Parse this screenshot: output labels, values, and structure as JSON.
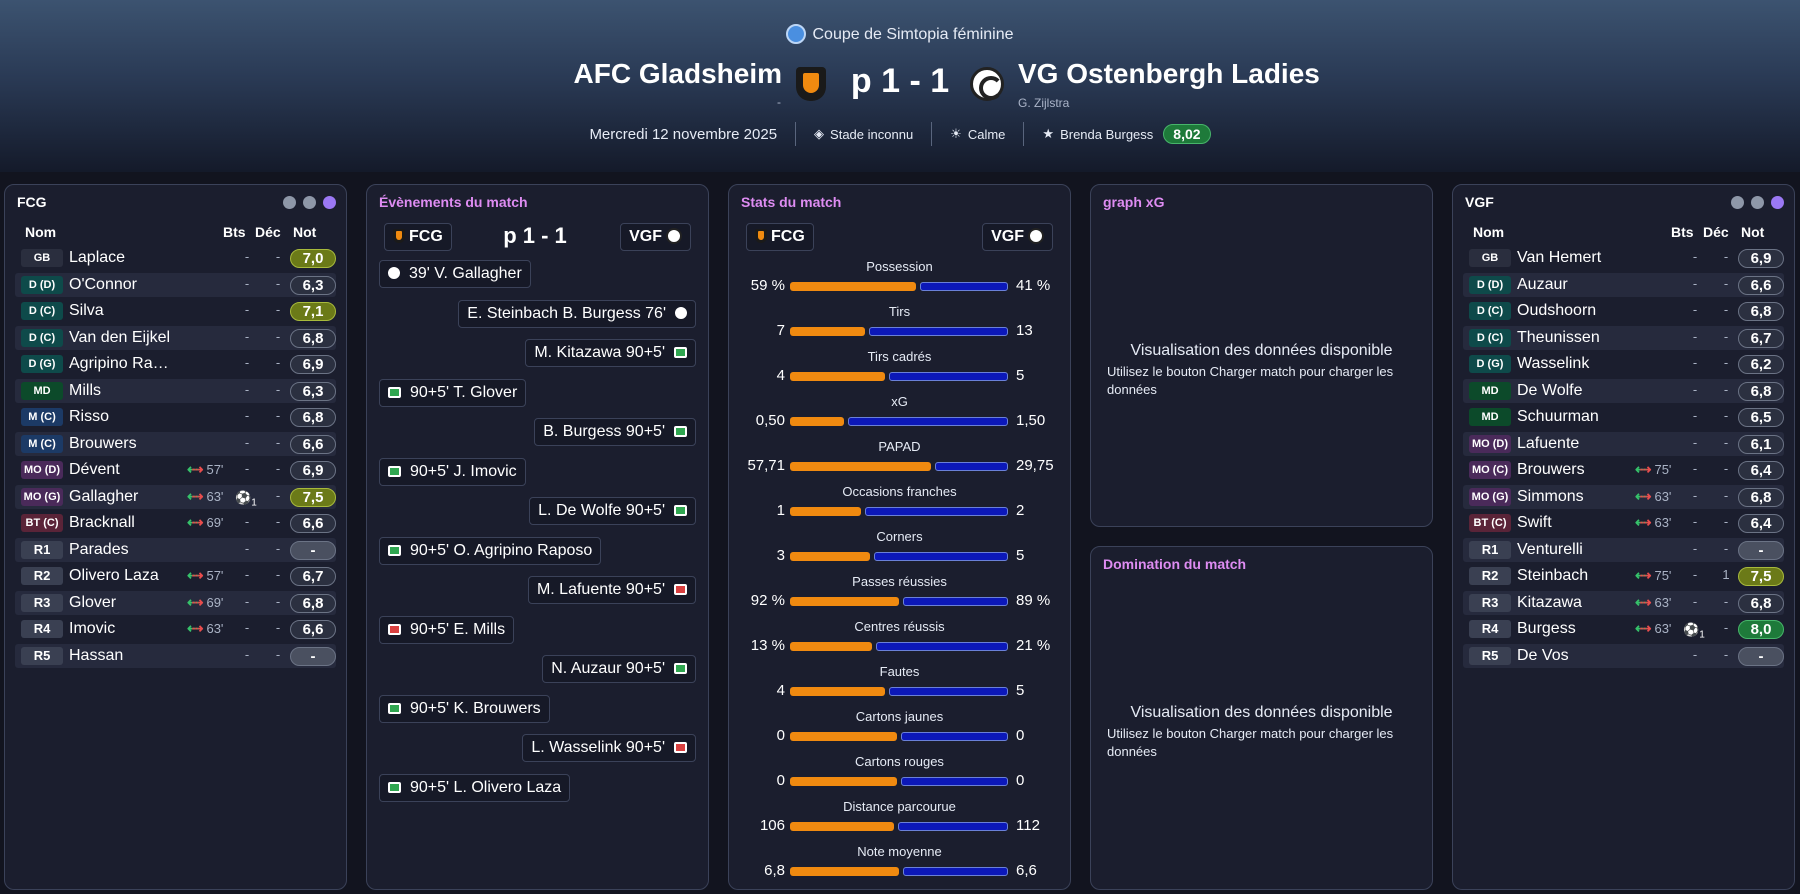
{
  "header": {
    "competition": "Coupe de Simtopia féminine",
    "home_team": "AFC Gladsheim",
    "away_team": "VG Ostenbergh Ladies",
    "home_manager": "-",
    "away_manager": "G. Zijlstra",
    "score": "p 1 - 1",
    "date": "Mercredi 12 novembre 2025",
    "stadium": "Stade inconnu",
    "weather": "Calme",
    "player_of_match": "Brenda Burgess",
    "player_of_match_rating": "8,02"
  },
  "colors": {
    "home_accent": "#f08a10",
    "away_accent": "#0c18b8",
    "panel_title": "#de8cf2",
    "rating_good": "#1e7a3a"
  },
  "home_lineup": {
    "title": "FCG",
    "columns": {
      "name": "Nom",
      "goals": "Bts",
      "assists": "Déc",
      "rating": "Not"
    },
    "players": [
      {
        "pos": "GB",
        "name": "Laplace",
        "goals": "-",
        "assists": "-",
        "rating": "7,0"
      },
      {
        "pos": "D (D)",
        "name": "O'Connor",
        "goals": "-",
        "assists": "-",
        "rating": "6,3"
      },
      {
        "pos": "D (C)",
        "name": "Silva",
        "goals": "-",
        "assists": "-",
        "rating": "7,1"
      },
      {
        "pos": "D (C)",
        "name": "Van den Eijkel",
        "goals": "-",
        "assists": "-",
        "rating": "6,8"
      },
      {
        "pos": "D (G)",
        "name": "Agripino Ra…",
        "goals": "-",
        "assists": "-",
        "rating": "6,9"
      },
      {
        "pos": "MD",
        "name": "Mills",
        "goals": "-",
        "assists": "-",
        "rating": "6,3"
      },
      {
        "pos": "M (C)",
        "name": "Risso",
        "goals": "-",
        "assists": "-",
        "rating": "6,8"
      },
      {
        "pos": "M (C)",
        "name": "Brouwers",
        "goals": "-",
        "assists": "-",
        "rating": "6,6"
      },
      {
        "pos": "MO (D)",
        "name": "Dévent",
        "sub": "57'",
        "goals": "-",
        "assists": "-",
        "rating": "6,9"
      },
      {
        "pos": "MO (G)",
        "name": "Gallagher",
        "sub": "63'",
        "goals": "1",
        "assists": "-",
        "rating": "7,5"
      },
      {
        "pos": "BT (C)",
        "name": "Bracknall",
        "sub": "69'",
        "goals": "-",
        "assists": "-",
        "rating": "6,6"
      },
      {
        "pos": "R1",
        "name": "Parades",
        "goals": "-",
        "assists": "-",
        "rating": "-"
      },
      {
        "pos": "R2",
        "name": "Olivero Laza",
        "sub": "57'",
        "goals": "-",
        "assists": "-",
        "rating": "6,7"
      },
      {
        "pos": "R3",
        "name": "Glover",
        "sub": "69'",
        "goals": "-",
        "assists": "-",
        "rating": "6,8"
      },
      {
        "pos": "R4",
        "name": "Imovic",
        "sub": "63'",
        "goals": "-",
        "assists": "-",
        "rating": "6,6"
      },
      {
        "pos": "R5",
        "name": "Hassan",
        "goals": "-",
        "assists": "-",
        "rating": "-"
      }
    ]
  },
  "away_lineup": {
    "title": "VGF",
    "columns": {
      "name": "Nom",
      "goals": "Bts",
      "assists": "Déc",
      "rating": "Not"
    },
    "players": [
      {
        "pos": "GB",
        "name": "Van Hemert",
        "goals": "-",
        "assists": "-",
        "rating": "6,9"
      },
      {
        "pos": "D (D)",
        "name": "Auzaur",
        "goals": "-",
        "assists": "-",
        "rating": "6,6"
      },
      {
        "pos": "D (C)",
        "name": "Oudshoorn",
        "goals": "-",
        "assists": "-",
        "rating": "6,8"
      },
      {
        "pos": "D (C)",
        "name": "Theunissen",
        "goals": "-",
        "assists": "-",
        "rating": "6,7"
      },
      {
        "pos": "D (G)",
        "name": "Wasselink",
        "goals": "-",
        "assists": "-",
        "rating": "6,2"
      },
      {
        "pos": "MD",
        "name": "De Wolfe",
        "goals": "-",
        "assists": "-",
        "rating": "6,8"
      },
      {
        "pos": "MD",
        "name": "Schuurman",
        "goals": "-",
        "assists": "-",
        "rating": "6,5"
      },
      {
        "pos": "MO (D)",
        "name": "Lafuente",
        "goals": "-",
        "assists": "-",
        "rating": "6,1"
      },
      {
        "pos": "MO (C)",
        "name": "Brouwers",
        "sub": "75'",
        "goals": "-",
        "assists": "-",
        "rating": "6,4"
      },
      {
        "pos": "MO (G)",
        "name": "Simmons",
        "sub": "63'",
        "goals": "-",
        "assists": "-",
        "rating": "6,8"
      },
      {
        "pos": "BT (C)",
        "name": "Swift",
        "sub": "63'",
        "goals": "-",
        "assists": "-",
        "rating": "6,4"
      },
      {
        "pos": "R1",
        "name": "Venturelli",
        "goals": "-",
        "assists": "-",
        "rating": "-"
      },
      {
        "pos": "R2",
        "name": "Steinbach",
        "sub": "75'",
        "goals": "-",
        "assists": "1",
        "rating": "7,5"
      },
      {
        "pos": "R3",
        "name": "Kitazawa",
        "sub": "63'",
        "goals": "-",
        "assists": "-",
        "rating": "6,8"
      },
      {
        "pos": "R4",
        "name": "Burgess",
        "sub": "63'",
        "goals": "1",
        "assists": "-",
        "rating": "8,0"
      },
      {
        "pos": "R5",
        "name": "De Vos",
        "goals": "-",
        "assists": "-",
        "rating": "-"
      }
    ]
  },
  "events": {
    "title": "Évènements du match",
    "home_label": "FCG",
    "away_label": "VGF",
    "score": "p 1 - 1",
    "items": [
      {
        "side": "home",
        "icon": "goal",
        "text": "39' V. Gallagher"
      },
      {
        "side": "away",
        "icon": "goal",
        "text": "E. Steinbach B. Burgess 76'"
      },
      {
        "side": "away",
        "icon": "green",
        "text": "M. Kitazawa 90+5'"
      },
      {
        "side": "home",
        "icon": "green",
        "text": "90+5' T. Glover"
      },
      {
        "side": "away",
        "icon": "green",
        "text": "B. Burgess 90+5'"
      },
      {
        "side": "home",
        "icon": "green",
        "text": "90+5' J. Imovic"
      },
      {
        "side": "away",
        "icon": "green",
        "text": "L. De Wolfe 90+5'"
      },
      {
        "side": "home",
        "icon": "green",
        "text": "90+5' O. Agripino Raposo"
      },
      {
        "side": "away",
        "icon": "red",
        "text": "M. Lafuente 90+5'"
      },
      {
        "side": "home",
        "icon": "red",
        "text": "90+5' E. Mills"
      },
      {
        "side": "away",
        "icon": "green",
        "text": "N. Auzaur 90+5'"
      },
      {
        "side": "home",
        "icon": "green",
        "text": "90+5' K. Brouwers"
      },
      {
        "side": "away",
        "icon": "red",
        "text": "L. Wasselink 90+5'"
      },
      {
        "side": "home",
        "icon": "green",
        "text": "90+5' L. Olivero Laza"
      }
    ]
  },
  "stats": {
    "title": "Stats du match",
    "home_label": "FCG",
    "away_label": "VGF",
    "items": [
      {
        "label": "Possession",
        "home": "59 %",
        "away": "41 %",
        "hv": 59,
        "av": 41
      },
      {
        "label": "Tirs",
        "home": "7",
        "away": "13",
        "hv": 7,
        "av": 13
      },
      {
        "label": "Tirs cadrés",
        "home": "4",
        "away": "5",
        "hv": 4,
        "av": 5
      },
      {
        "label": "xG",
        "home": "0,50",
        "away": "1,50",
        "hv": 0.5,
        "av": 1.5
      },
      {
        "label": "PAPAD",
        "home": "57,71",
        "away": "29,75",
        "hv": 57.71,
        "av": 29.75
      },
      {
        "label": "Occasions franches",
        "home": "1",
        "away": "2",
        "hv": 1,
        "av": 2
      },
      {
        "label": "Corners",
        "home": "3",
        "away": "5",
        "hv": 3,
        "av": 5
      },
      {
        "label": "Passes réussies",
        "home": "92 %",
        "away": "89 %",
        "hv": 92,
        "av": 89
      },
      {
        "label": "Centres réussis",
        "home": "13 %",
        "away": "21 %",
        "hv": 13,
        "av": 21
      },
      {
        "label": "Fautes",
        "home": "4",
        "away": "5",
        "hv": 4,
        "av": 5
      },
      {
        "label": "Cartons jaunes",
        "home": "0",
        "away": "0",
        "hv": 0,
        "av": 0
      },
      {
        "label": "Cartons rouges",
        "home": "0",
        "away": "0",
        "hv": 0,
        "av": 0
      },
      {
        "label": "Distance parcourue",
        "home": "106",
        "away": "112",
        "hv": 106,
        "av": 112
      },
      {
        "label": "Note moyenne",
        "home": "6,8",
        "away": "6,6",
        "hv": 6.8,
        "av": 6.6
      }
    ]
  },
  "xg_panel": {
    "title": "graph xG",
    "heading": "Visualisation des données disponible",
    "body": "Utilisez le bouton Charger match pour charger les données"
  },
  "dom_panel": {
    "title": "Domination du match",
    "heading": "Visualisation des données disponible",
    "body": "Utilisez le bouton Charger match pour charger les données"
  }
}
